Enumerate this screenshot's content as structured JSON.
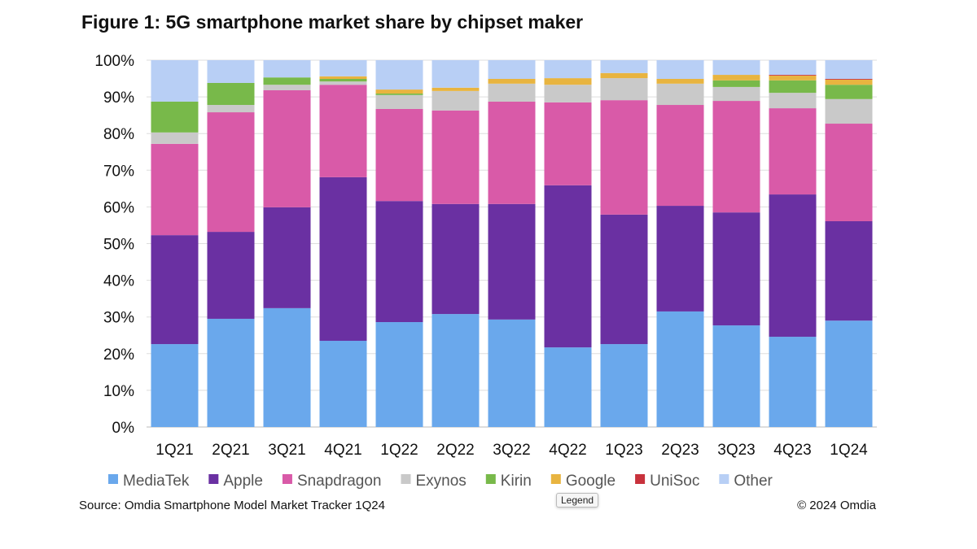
{
  "title": "Figure 1: 5G smartphone market share by chipset maker",
  "source": "Source: Omdia Smartphone Model Market Tracker 1Q24",
  "copyright": "© 2024 Omdia",
  "tooltip": "Legend",
  "chart_data": {
    "type": "bar",
    "stacked": true,
    "title": "Figure 1: 5G smartphone market share by chipset maker",
    "xlabel": "",
    "ylabel": "",
    "ylim": [
      0,
      100
    ],
    "yticks": [
      "0%",
      "10%",
      "20%",
      "30%",
      "40%",
      "50%",
      "60%",
      "70%",
      "80%",
      "90%",
      "100%"
    ],
    "grid": true,
    "legend": "bottom",
    "categories": [
      "1Q21",
      "2Q21",
      "3Q21",
      "4Q21",
      "1Q22",
      "2Q22",
      "3Q22",
      "4Q22",
      "1Q23",
      "2Q23",
      "3Q23",
      "4Q23",
      "1Q24"
    ],
    "series": [
      {
        "name": "MediaTek",
        "color": "#6aa8ec",
        "values": [
          22.6,
          29.5,
          32.4,
          23.5,
          28.6,
          30.8,
          29.3,
          21.7,
          22.6,
          31.5,
          27.7,
          24.6,
          29.0
        ]
      },
      {
        "name": "Apple",
        "color": "#6a30a2",
        "values": [
          29.7,
          23.7,
          27.5,
          44.6,
          33.0,
          30.0,
          31.5,
          44.2,
          35.3,
          28.8,
          30.8,
          38.8,
          27.1
        ]
      },
      {
        "name": "Snapdragon",
        "color": "#d95aa8",
        "values": [
          24.9,
          32.6,
          31.9,
          25.2,
          25.1,
          25.5,
          27.9,
          22.6,
          31.2,
          27.5,
          30.4,
          23.5,
          26.6
        ]
      },
      {
        "name": "Exynos",
        "color": "#c9c9c9",
        "values": [
          3.1,
          2.0,
          1.5,
          0.9,
          3.8,
          5.3,
          4.9,
          4.8,
          6.0,
          5.8,
          3.8,
          4.2,
          6.7
        ]
      },
      {
        "name": "Kirin",
        "color": "#78b94a",
        "values": [
          8.4,
          6.0,
          2.0,
          0.7,
          0.4,
          0,
          0,
          0,
          0,
          0,
          1.8,
          3.4,
          3.9
        ]
      },
      {
        "name": "Google",
        "color": "#e8b440",
        "values": [
          0,
          0,
          0,
          0.7,
          1.1,
          0.9,
          1.3,
          1.8,
          1.4,
          1.3,
          1.5,
          1.3,
          1.4
        ]
      },
      {
        "name": "UniSoc",
        "color": "#c8323c",
        "values": [
          0,
          0,
          0,
          0,
          0,
          0,
          0,
          0,
          0,
          0,
          0,
          0.2,
          0.2
        ]
      },
      {
        "name": "Other",
        "color": "#b8cff5",
        "values": [
          11.3,
          6.2,
          4.7,
          4.4,
          8.0,
          7.5,
          5.1,
          4.9,
          3.5,
          5.1,
          4.0,
          4.0,
          5.1
        ]
      }
    ]
  }
}
